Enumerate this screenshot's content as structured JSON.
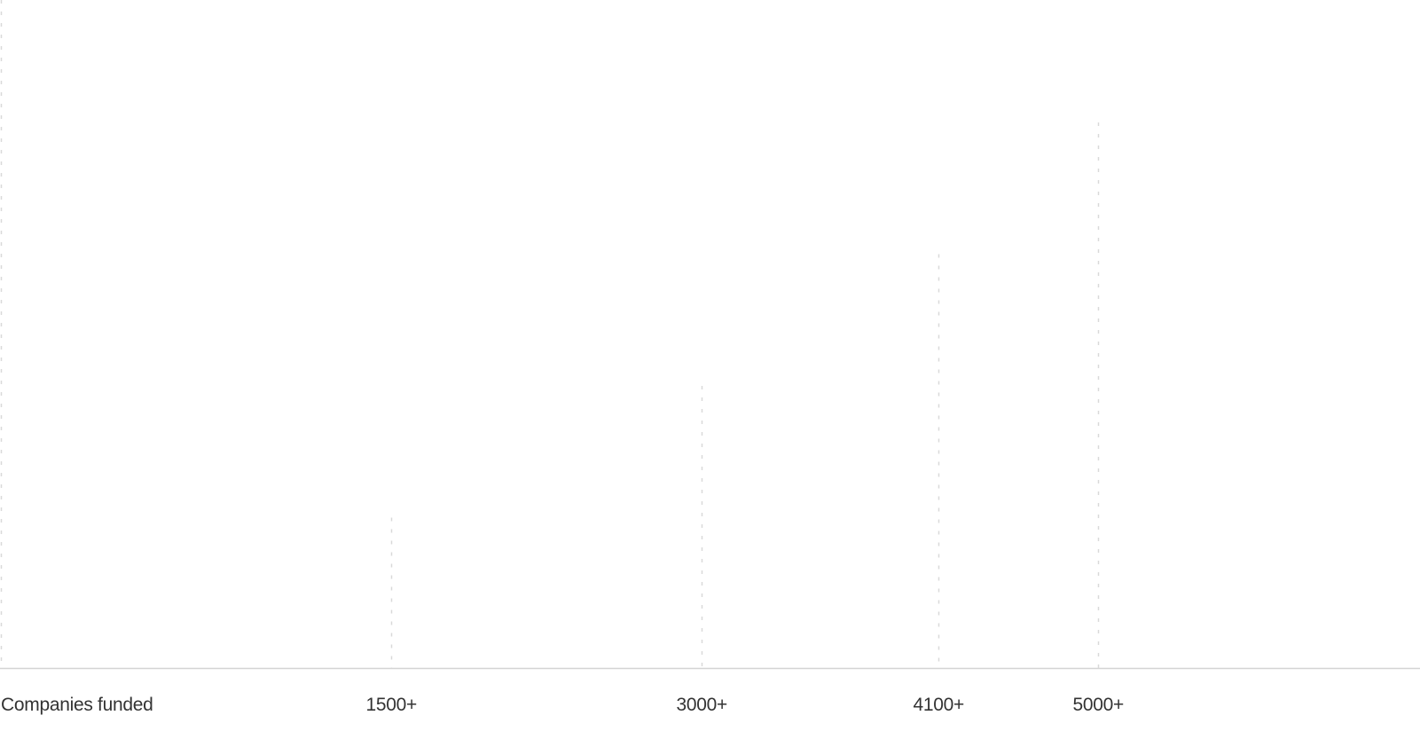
{
  "chart_data": {
    "type": "bar",
    "title": "",
    "xlabel": "Companies funded",
    "ylabel": "",
    "categories": [
      "1500+",
      "3000+",
      "4100+",
      "5000+"
    ],
    "values": [
      1500,
      3000,
      4100,
      5000
    ],
    "grid": false,
    "line_color": "#d9d9d9",
    "axis_color": "#d4d4d4",
    "text_color": "#333333"
  }
}
